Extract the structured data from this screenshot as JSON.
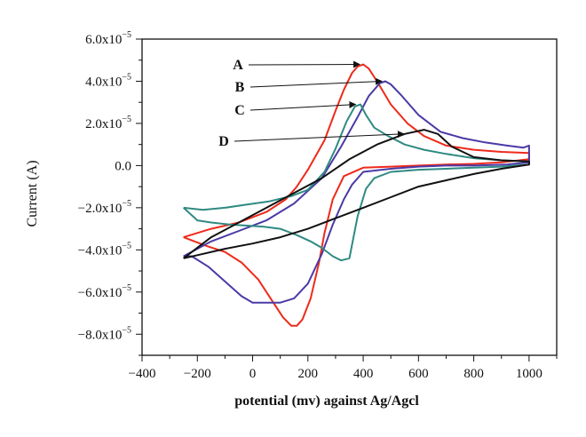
{
  "chart_data": {
    "type": "line",
    "xlabel": "potential (mv) against Ag/Agcl",
    "ylabel": "Current (A)",
    "xlim": [
      -400,
      1100
    ],
    "ylim": [
      -9e-05,
      6e-05
    ],
    "x_ticks": [
      {
        "value": -400,
        "label": "−400"
      },
      {
        "value": -200,
        "label": "−200"
      },
      {
        "value": 0,
        "label": "0"
      },
      {
        "value": 200,
        "label": "200"
      },
      {
        "value": 400,
        "label": "400"
      },
      {
        "value": 600,
        "label": "600"
      },
      {
        "value": 800,
        "label": "800"
      },
      {
        "value": 1000,
        "label": "1000"
      }
    ],
    "y_ticks": [
      {
        "value": 6e-05,
        "mant": "6.0x10",
        "exp": "−5"
      },
      {
        "value": 4e-05,
        "mant": "4.0x10",
        "exp": "−5"
      },
      {
        "value": 2e-05,
        "mant": "2.0x10",
        "exp": "−5"
      },
      {
        "value": 0,
        "mant": "0.0",
        "exp": ""
      },
      {
        "value": -2e-05,
        "mant": "−2.0x10",
        "exp": "−5"
      },
      {
        "value": -4e-05,
        "mant": "−4.0x10",
        "exp": "−5"
      },
      {
        "value": -6e-05,
        "mant": "−6.0x10",
        "exp": "−5"
      },
      {
        "value": -8e-05,
        "mant": "−8.0x10",
        "exp": "−5"
      }
    ],
    "grid": false,
    "series": [
      {
        "name": "A",
        "color": "#ee2a1b",
        "label_anchor": [
          400,
          4.8e-05
        ],
        "x": [
          -250,
          -150,
          -50,
          50,
          120,
          160,
          200,
          260,
          300,
          330,
          360,
          380,
          400,
          420,
          450,
          500,
          560,
          620,
          700,
          800,
          900,
          1000,
          1000,
          900,
          800,
          700,
          600,
          500,
          400,
          330,
          290,
          260,
          240,
          210,
          180,
          160,
          140,
          110,
          70,
          20,
          -40,
          -100,
          -170,
          -250
        ],
        "y": [
          -3.4e-05,
          -3e-05,
          -2.7e-05,
          -2.2e-05,
          -1.6e-05,
          -1e-05,
          -2e-06,
          1.2e-05,
          2.6e-05,
          3.6e-05,
          4.4e-05,
          4.7e-05,
          4.8e-05,
          4.6e-05,
          4e-05,
          2.9e-05,
          2e-05,
          1.4e-05,
          9.5e-06,
          7.5e-06,
          6.5e-06,
          6e-06,
          3e-06,
          1.5e-06,
          8e-07,
          5e-07,
          0.0,
          -5e-07,
          -1e-06,
          -5e-06,
          -1.6e-05,
          -3.2e-05,
          -4.6e-05,
          -6.3e-05,
          -7.3e-05,
          -7.6e-05,
          -7.6e-05,
          -7.2e-05,
          -6.4e-05,
          -5.4e-05,
          -4.6e-05,
          -4.1e-05,
          -3.8e-05,
          -3.4e-05
        ]
      },
      {
        "name": "B",
        "color": "#4a3aa6",
        "label_anchor": [
          480,
          4e-05
        ],
        "x": [
          -250,
          -150,
          -50,
          50,
          150,
          250,
          320,
          380,
          420,
          460,
          480,
          500,
          540,
          600,
          680,
          760,
          840,
          920,
          980,
          1000,
          1000,
          920,
          800,
          700,
          600,
          500,
          400,
          360,
          330,
          290,
          250,
          200,
          150,
          100,
          50,
          20,
          0,
          -40,
          -100,
          -160,
          -220,
          -250
        ],
        "y": [
          -4.3e-05,
          -3.6e-05,
          -3.1e-05,
          -2.6e-05,
          -1.8e-05,
          -6e-06,
          9e-06,
          2.3e-05,
          3.3e-05,
          3.9e-05,
          4e-05,
          3.85e-05,
          3.3e-05,
          2.4e-05,
          1.6e-05,
          1.3e-05,
          1.1e-05,
          9.5e-06,
          8.5e-06,
          9.5e-06,
          1.5e-06,
          5e-07,
          0.0,
          0.0,
          -5e-07,
          -1.5e-06,
          -3e-06,
          -9e-06,
          -1.6e-05,
          -2.8e-05,
          -4.2e-05,
          -5.6e-05,
          -6.3e-05,
          -6.5e-05,
          -6.5e-05,
          -6.5e-05,
          -6.5e-05,
          -6.2e-05,
          -5.5e-05,
          -4.8e-05,
          -4.3e-05,
          -4.3e-05
        ]
      },
      {
        "name": "C",
        "color": "#2f8a82",
        "label_anchor": [
          385,
          2.9e-05
        ],
        "x": [
          -250,
          -180,
          -100,
          -20,
          60,
          140,
          200,
          260,
          300,
          340,
          370,
          390,
          410,
          440,
          490,
          550,
          620,
          700,
          800,
          900,
          1000,
          1000,
          900,
          800,
          700,
          600,
          500,
          440,
          410,
          380,
          350,
          320,
          290,
          250,
          210,
          160,
          100,
          40,
          -20,
          -80,
          -150,
          -200,
          -250
        ],
        "y": [
          -2e-05,
          -2.1e-05,
          -2e-05,
          -1.85e-05,
          -1.7e-05,
          -1.45e-05,
          -1.15e-05,
          -3e-06,
          8e-06,
          2.1e-05,
          2.8e-05,
          2.9e-05,
          2.4e-05,
          1.8e-05,
          1.4e-05,
          1e-05,
          7.5e-06,
          5.5e-06,
          3.5e-06,
          2.5e-06,
          2e-06,
          5e-07,
          -5e-07,
          -1e-06,
          -1.5e-06,
          -2e-06,
          -3e-06,
          -6e-06,
          -1.1e-05,
          -2.4e-05,
          -4.4e-05,
          -4.5e-05,
          -4.3e-05,
          -3.9e-05,
          -3.6e-05,
          -3.3e-05,
          -3e-05,
          -2.9e-05,
          -2.85e-05,
          -2.8e-05,
          -2.7e-05,
          -2.6e-05,
          -2e-05
        ]
      },
      {
        "name": "D",
        "color": "#111111",
        "label_anchor": [
          560,
          1.5e-05
        ],
        "x": [
          -250,
          -150,
          -50,
          50,
          150,
          250,
          350,
          450,
          550,
          620,
          670,
          720,
          800,
          900,
          1000,
          1000,
          900,
          800,
          700,
          600,
          500,
          400,
          300,
          200,
          100,
          0,
          -100,
          -200,
          -250
        ],
        "y": [
          -4.4e-05,
          -3.4e-05,
          -2.7e-05,
          -2e-05,
          -1.3e-05,
          -6e-06,
          3e-06,
          1e-05,
          1.5e-05,
          1.7e-05,
          1.5e-05,
          9e-06,
          4e-06,
          2.5e-06,
          2e-06,
          5e-07,
          -1.5e-06,
          -4e-06,
          -7e-06,
          -1e-05,
          -1.5e-05,
          -2e-05,
          -2.5e-05,
          -3e-05,
          -3.4e-05,
          -3.7e-05,
          -3.95e-05,
          -4.25e-05,
          -4.4e-05
        ]
      }
    ]
  }
}
